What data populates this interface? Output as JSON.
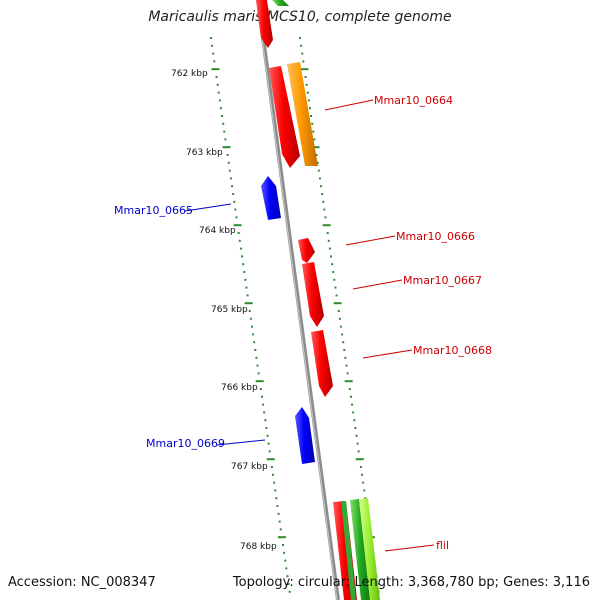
{
  "title": "Maricaulis maris MCS10, complete genome",
  "footer": {
    "accession": "Accession: NC_008347",
    "summary": "Topology: circular; Length: 3,368,780 bp; Genes: 3,116"
  },
  "colors": {
    "backbone": "#8c8c8c",
    "tick": "#2e8b2e",
    "forward_gene": "#ff0000",
    "reverse_gene": "#0000ff",
    "orange_gene": "#ff9900",
    "green_gene": "#33aa33",
    "forward_label": "#cc0000",
    "reverse_label": "#0000cc"
  },
  "scale_labels": [
    "762 kbp",
    "763 kbp",
    "764 kbp",
    "765 kbp",
    "766 kbp",
    "767 kbp",
    "768 kbp"
  ],
  "gene_labels": {
    "g0664": "Mmar10_0664",
    "g0665": "Mmar10_0665",
    "g0666": "Mmar10_0666",
    "g0667": "Mmar10_0667",
    "g0668": "Mmar10_0668",
    "g0669": "Mmar10_0669",
    "flil": "flil"
  }
}
